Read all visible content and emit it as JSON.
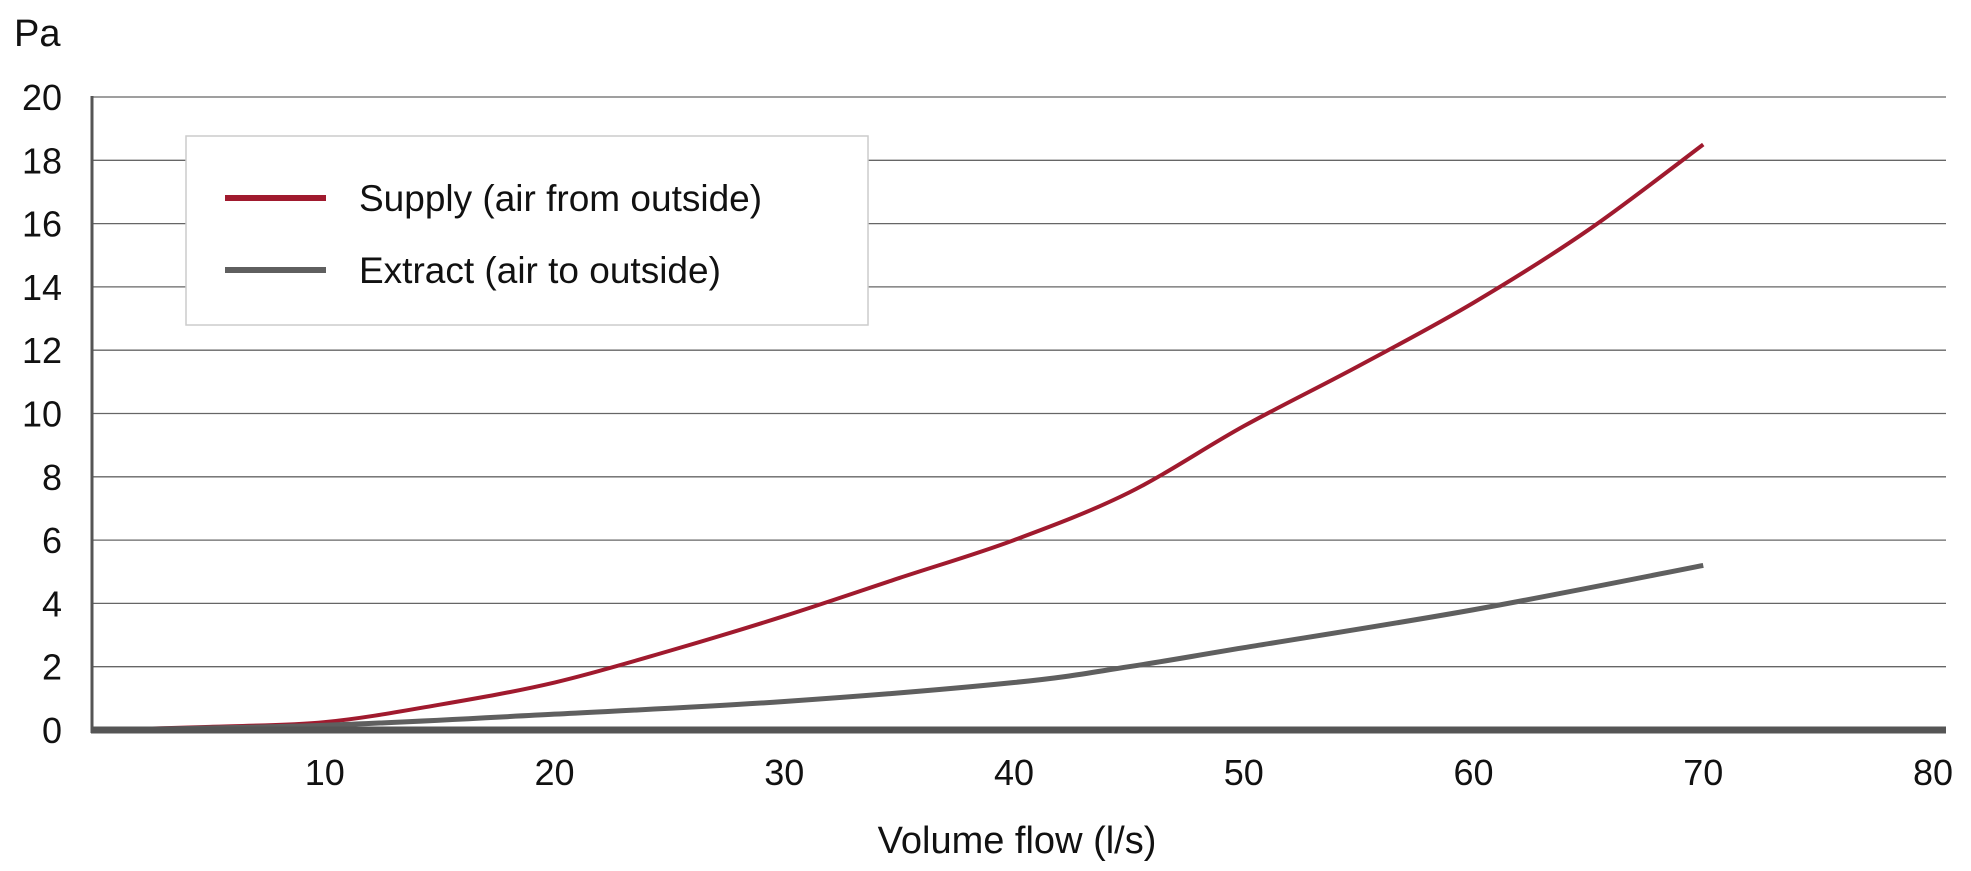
{
  "chart_data": {
    "type": "line",
    "title": "",
    "xlabel": "Volume flow (l/s)",
    "ylabel": "Pa",
    "xlim": [
      0,
      80
    ],
    "ylim": [
      0,
      20
    ],
    "xticks": [
      10,
      20,
      30,
      40,
      50,
      60,
      70,
      80
    ],
    "yticks": [
      0,
      2,
      4,
      6,
      8,
      10,
      12,
      14,
      16,
      18,
      20
    ],
    "grid": "horizontal",
    "legend_position": "top-left",
    "series": [
      {
        "name": "Supply (air from outside)",
        "color": "#a01a2e",
        "x": [
          0,
          5,
          10,
          15,
          20,
          25,
          30,
          35,
          40,
          45,
          50,
          55,
          60,
          65,
          70
        ],
        "y": [
          0,
          0.1,
          0.25,
          0.8,
          1.5,
          2.5,
          3.6,
          4.8,
          6.0,
          7.5,
          9.6,
          11.5,
          13.5,
          15.8,
          18.5
        ]
      },
      {
        "name": "Extract (air to outside)",
        "color": "#5f5f5f",
        "x": [
          0,
          10,
          20,
          30,
          40,
          45,
          50,
          60,
          70
        ],
        "y": [
          0,
          0.15,
          0.5,
          0.9,
          1.5,
          2.0,
          2.6,
          3.8,
          5.2
        ]
      }
    ]
  }
}
